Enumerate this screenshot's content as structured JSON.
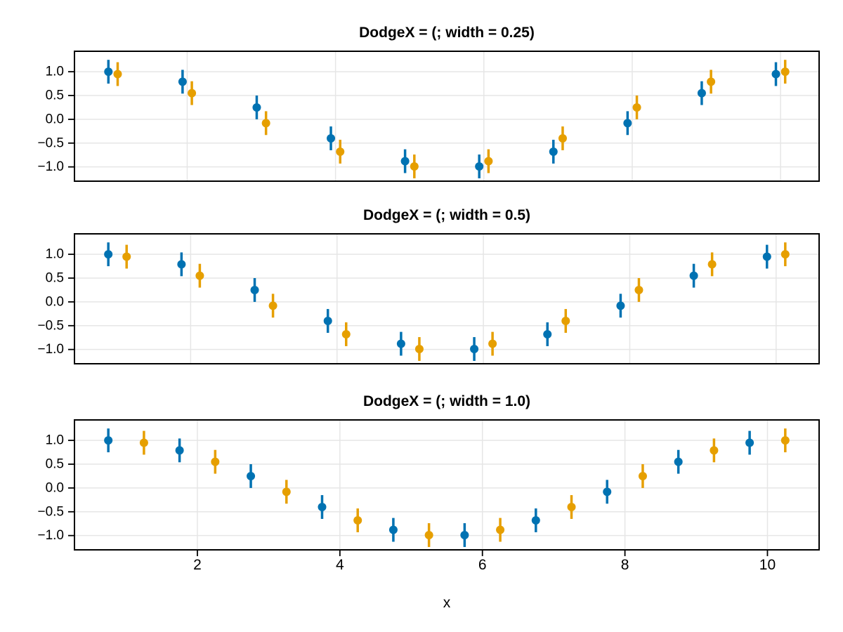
{
  "figure": {
    "xlabel": "x",
    "background": "#ffffff"
  },
  "axis_style": {
    "grid_color": "#e6e6e6",
    "spine_color": "#000000",
    "tick_color": "#000000",
    "text_color": "#000000"
  },
  "colors": {
    "series1": "#0072B2",
    "series2": "#E69F00"
  },
  "y_axis": {
    "tick_values": [
      1.0,
      0.5,
      0.0,
      -0.5,
      -1.0
    ],
    "tick_labels": [
      "1.0",
      "0.5",
      "0.0",
      "−0.5",
      "−1.0"
    ]
  },
  "x_axis": {
    "tick_values": [
      2,
      4,
      6,
      8,
      10
    ],
    "tick_labels": [
      "2",
      "4",
      "6",
      "8",
      "10"
    ]
  },
  "chart_data": [
    {
      "type": "scatter",
      "title": "DodgeX = (; width = 0.25)",
      "dodge_width": 0.25,
      "x": [
        1,
        2,
        3,
        4,
        5,
        6,
        7,
        8,
        9,
        10
      ],
      "series": [
        {
          "color": "#0072B2",
          "dodge_offset": -0.0625,
          "yerr": 0.25,
          "y": [
            1.0,
            0.79,
            0.25,
            -0.4,
            -0.88,
            -0.99,
            -0.68,
            -0.08,
            0.55,
            0.95
          ]
        },
        {
          "color": "#E69F00",
          "dodge_offset": 0.0625,
          "yerr": 0.25,
          "y": [
            0.95,
            0.55,
            -0.08,
            -0.68,
            -0.99,
            -0.88,
            -0.4,
            0.25,
            0.79,
            1.0
          ]
        }
      ],
      "xlim": [
        0.48,
        10.52
      ],
      "ylim": [
        -1.3,
        1.43
      ],
      "show_x_tick_labels": false,
      "grid": true
    },
    {
      "type": "scatter",
      "title": "DodgeX = (; width = 0.5)",
      "dodge_width": 0.5,
      "x": [
        1,
        2,
        3,
        4,
        5,
        6,
        7,
        8,
        9,
        10
      ],
      "series": [
        {
          "color": "#0072B2",
          "dodge_offset": -0.125,
          "yerr": 0.25,
          "y": [
            1.0,
            0.79,
            0.25,
            -0.4,
            -0.88,
            -0.99,
            -0.68,
            -0.08,
            0.55,
            0.95
          ]
        },
        {
          "color": "#E69F00",
          "dodge_offset": 0.125,
          "yerr": 0.25,
          "y": [
            0.95,
            0.55,
            -0.08,
            -0.68,
            -0.99,
            -0.88,
            -0.4,
            0.25,
            0.79,
            1.0
          ]
        }
      ],
      "xlim": [
        0.4125,
        10.5875
      ],
      "ylim": [
        -1.3,
        1.43
      ],
      "show_x_tick_labels": false,
      "grid": true
    },
    {
      "type": "scatter",
      "title": "DodgeX = (; width = 1.0)",
      "dodge_width": 1.0,
      "x": [
        1,
        2,
        3,
        4,
        5,
        6,
        7,
        8,
        9,
        10
      ],
      "series": [
        {
          "color": "#0072B2",
          "dodge_offset": -0.25,
          "yerr": 0.25,
          "y": [
            1.0,
            0.79,
            0.25,
            -0.4,
            -0.88,
            -0.99,
            -0.68,
            -0.08,
            0.55,
            0.95
          ]
        },
        {
          "color": "#E69F00",
          "dodge_offset": 0.25,
          "yerr": 0.25,
          "y": [
            0.95,
            0.55,
            -0.08,
            -0.68,
            -0.99,
            -0.88,
            -0.4,
            0.25,
            0.79,
            1.0
          ]
        }
      ],
      "xlim": [
        0.275,
        10.725
      ],
      "ylim": [
        -1.3,
        1.43
      ],
      "show_x_tick_labels": true,
      "grid": true
    }
  ]
}
